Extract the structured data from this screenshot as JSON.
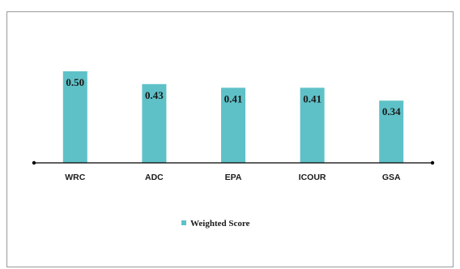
{
  "chart_data": {
    "type": "bar",
    "categories": [
      "WRC",
      "ADC",
      "EPA",
      "ICOUR",
      "GSA"
    ],
    "series": [
      {
        "name": "Weighted Score",
        "values": [
          0.5,
          0.43,
          0.41,
          0.41,
          0.34
        ],
        "labels": [
          "0.50",
          "0.43",
          "0.41",
          "0.41",
          "0.34"
        ],
        "color": "#5fc1c8"
      }
    ],
    "title": "",
    "xlabel": "",
    "ylabel": "",
    "ylim": [
      0,
      0.5
    ],
    "grid": false,
    "legend_position": "bottom-center",
    "axis_color": "#000000"
  }
}
